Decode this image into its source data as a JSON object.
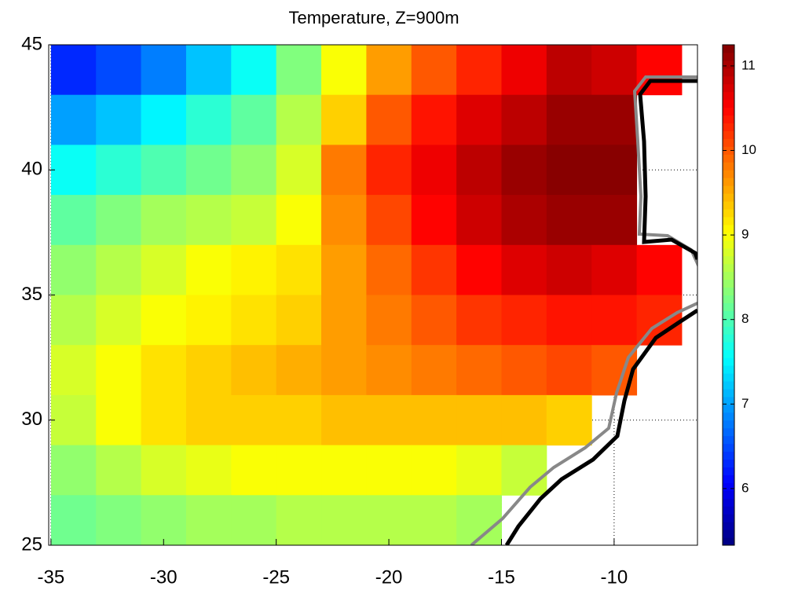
{
  "chart_data": {
    "type": "heatmap",
    "title": "Temperature, Z=900m",
    "x": [
      -34,
      -32,
      -30,
      -28,
      -26,
      -24,
      -22,
      -20,
      -18,
      -16,
      -14,
      -12,
      -10,
      -8
    ],
    "y": [
      44,
      42,
      40,
      38,
      36,
      34,
      32,
      30,
      28,
      26
    ],
    "values": [
      [
        6.3,
        6.5,
        6.8,
        7.2,
        7.6,
        8.3,
        9.0,
        9.6,
        10.0,
        10.3,
        10.6,
        10.9,
        10.8,
        10.5
      ],
      [
        7.0,
        7.2,
        7.5,
        7.8,
        8.1,
        8.6,
        9.3,
        10.0,
        10.4,
        10.7,
        10.9,
        11.1,
        11.1,
        null
      ],
      [
        7.6,
        7.8,
        8.0,
        8.2,
        8.4,
        8.8,
        9.8,
        10.3,
        10.6,
        10.9,
        11.1,
        11.2,
        11.2,
        null
      ],
      [
        8.1,
        8.3,
        8.5,
        8.6,
        8.7,
        9.0,
        9.7,
        10.1,
        10.5,
        10.8,
        11.0,
        11.1,
        11.1,
        null
      ],
      [
        8.4,
        8.6,
        8.8,
        9.0,
        9.1,
        9.2,
        9.6,
        9.9,
        10.2,
        10.5,
        10.7,
        10.8,
        10.7,
        10.5
      ],
      [
        8.6,
        8.8,
        9.0,
        9.1,
        9.2,
        9.3,
        9.6,
        9.8,
        10.0,
        10.2,
        10.3,
        10.4,
        10.4,
        10.3
      ],
      [
        8.8,
        9.0,
        9.2,
        9.3,
        9.4,
        9.5,
        9.6,
        9.7,
        9.8,
        9.9,
        10.0,
        10.1,
        10.0,
        null
      ],
      [
        8.7,
        9.0,
        9.2,
        9.3,
        9.3,
        9.3,
        9.4,
        9.4,
        9.4,
        9.4,
        9.4,
        9.3,
        null,
        null
      ],
      [
        8.4,
        8.6,
        8.8,
        8.9,
        9.0,
        9.0,
        9.0,
        9.0,
        9.0,
        8.9,
        8.7,
        null,
        null,
        null
      ],
      [
        8.2,
        8.3,
        8.4,
        8.5,
        8.5,
        8.6,
        8.6,
        8.6,
        8.6,
        8.5,
        null,
        null,
        null,
        null
      ]
    ],
    "colormap": "jet",
    "xlim": [
      -35.1,
      -6.3
    ],
    "ylim": [
      25,
      45
    ],
    "xticks": [
      -35,
      -30,
      -25,
      -20,
      -15,
      -10
    ],
    "yticks": [
      25,
      30,
      35,
      40,
      45
    ],
    "clim": [
      5.33,
      11.25
    ],
    "cticks": [
      6,
      7,
      8,
      9,
      10,
      11
    ],
    "grid": true
  }
}
